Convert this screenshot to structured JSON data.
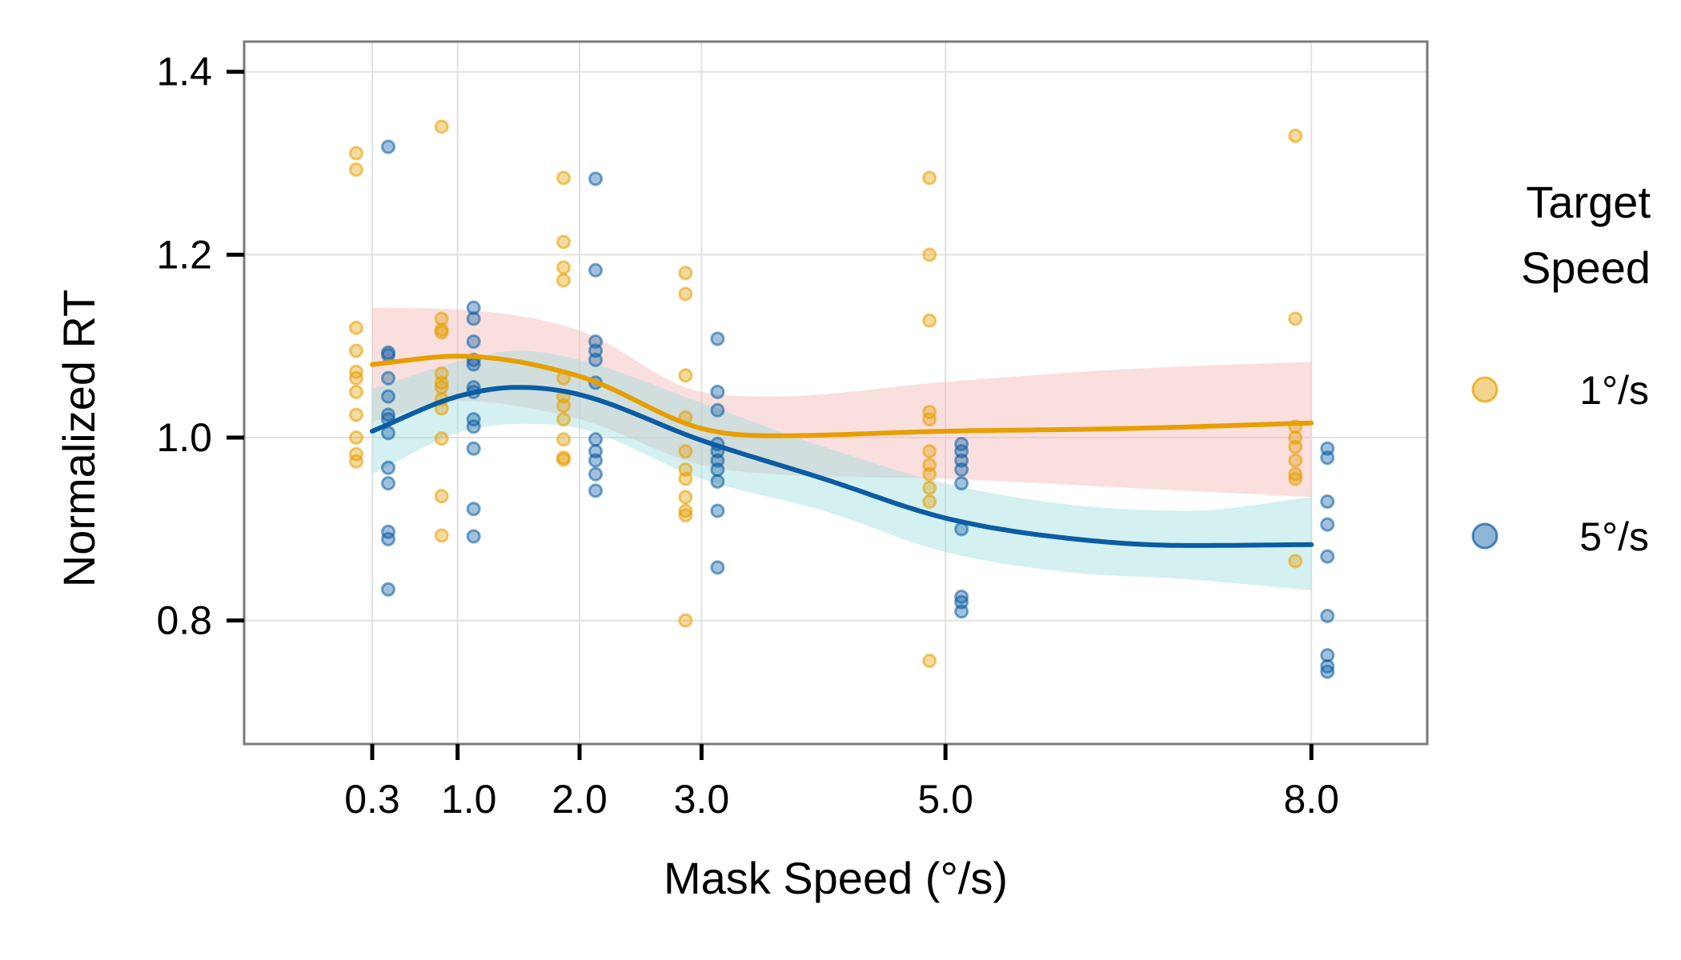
{
  "colors": {
    "slow": "#E69F00",
    "fast": "#0A5CA3",
    "slow_ribbon": "#F5B7B9",
    "fast_ribbon": "#9FDEDD",
    "grid": "#E2E2E2",
    "frame": "#7A7A7A"
  },
  "chart_data": {
    "type": "scatter",
    "xlabel": "Mask Speed (°/s)",
    "ylabel": "Normalized RT",
    "xlim": [
      -0.75,
      8.95
    ],
    "ylim": [
      0.665,
      1.433
    ],
    "x_ticks": [
      0.3,
      1.0,
      2.0,
      3.0,
      5.0,
      8.0
    ],
    "x_tick_labels": [
      "0.3",
      "1.0",
      "2.0",
      "3.0",
      "5.0",
      "8.0"
    ],
    "y_ticks": [
      0.8,
      1.0,
      1.2,
      1.4
    ],
    "y_tick_labels": [
      "0.8",
      "1.0",
      "1.2",
      "1.4"
    ],
    "grid": true,
    "legend": {
      "title_lines": [
        "Target",
        "Speed"
      ],
      "position": "right"
    },
    "series": [
      {
        "name": "1°/s",
        "color_key": "slow",
        "points": [
          {
            "x": 0.3,
            "ys": [
              1.311,
              1.293,
              1.12,
              1.095,
              1.072,
              1.065,
              1.05,
              1.025,
              1.0,
              0.982,
              0.974
            ]
          },
          {
            "x": 1.0,
            "ys": [
              1.34,
              1.13,
              1.118,
              1.115,
              1.07,
              1.06,
              1.055,
              1.042,
              1.032,
              0.999,
              0.936,
              0.893
            ]
          },
          {
            "x": 2.0,
            "ys": [
              1.284,
              1.214,
              1.186,
              1.172,
              1.065,
              1.045,
              1.035,
              1.02,
              0.998,
              0.978,
              0.976
            ]
          },
          {
            "x": 3.0,
            "ys": [
              1.18,
              1.157,
              1.068,
              1.022,
              0.985,
              0.965,
              0.955,
              0.935,
              0.92,
              0.915,
              0.8
            ]
          },
          {
            "x": 5.0,
            "ys": [
              1.284,
              1.2,
              1.128,
              1.028,
              1.02,
              0.985,
              0.97,
              0.96,
              0.945,
              0.93,
              0.756
            ]
          },
          {
            "x": 8.0,
            "ys": [
              1.33,
              1.13,
              1.012,
              1.0,
              0.99,
              0.975,
              0.96,
              0.955,
              0.865
            ]
          }
        ],
        "smooth": [
          {
            "x": 0.3,
            "y": 1.08,
            "lo": 1.017,
            "hi": 1.142
          },
          {
            "x": 1.0,
            "y": 1.089,
            "lo": 1.04,
            "hi": 1.14
          },
          {
            "x": 2.0,
            "y": 1.067,
            "lo": 1.02,
            "hi": 1.117
          },
          {
            "x": 3.0,
            "y": 1.01,
            "lo": 0.97,
            "hi": 1.05
          },
          {
            "x": 3.6,
            "y": 1.002,
            "lo": 0.96,
            "hi": 1.045
          },
          {
            "x": 5.0,
            "y": 1.007,
            "lo": 0.955,
            "hi": 1.061
          },
          {
            "x": 6.5,
            "y": 1.01,
            "lo": 0.945,
            "hi": 1.075
          },
          {
            "x": 8.0,
            "y": 1.016,
            "lo": 0.935,
            "hi": 1.083
          }
        ]
      },
      {
        "name": "5°/s",
        "color_key": "fast",
        "points": [
          {
            "x": 0.3,
            "ys": [
              1.318,
              1.093,
              1.09,
              1.065,
              1.045,
              1.025,
              1.02,
              1.005,
              0.967,
              0.95,
              0.897,
              0.889,
              0.834
            ]
          },
          {
            "x": 1.0,
            "ys": [
              1.142,
              1.13,
              1.105,
              1.085,
              1.08,
              1.055,
              1.05,
              1.02,
              1.012,
              0.988,
              0.922,
              0.892
            ]
          },
          {
            "x": 2.0,
            "ys": [
              1.283,
              1.183,
              1.105,
              1.095,
              1.085,
              1.06,
              0.998,
              0.985,
              0.975,
              0.96,
              0.942
            ]
          },
          {
            "x": 3.0,
            "ys": [
              1.108,
              1.05,
              1.03,
              0.993,
              0.985,
              0.975,
              0.965,
              0.952,
              0.92,
              0.858
            ]
          },
          {
            "x": 5.0,
            "ys": [
              0.993,
              0.985,
              0.975,
              0.965,
              0.95,
              0.9,
              0.826,
              0.82,
              0.81
            ]
          },
          {
            "x": 8.0,
            "ys": [
              0.988,
              0.978,
              0.93,
              0.905,
              0.87,
              0.805,
              0.762,
              0.75,
              0.744
            ]
          }
        ],
        "smooth": [
          {
            "x": 0.3,
            "y": 1.007,
            "lo": 0.96,
            "hi": 1.053
          },
          {
            "x": 1.0,
            "y": 1.045,
            "lo": 1.005,
            "hi": 1.083
          },
          {
            "x": 1.5,
            "y": 1.055,
            "lo": 1.015,
            "hi": 1.095
          },
          {
            "x": 2.0,
            "y": 1.047,
            "lo": 1.01,
            "hi": 1.085
          },
          {
            "x": 3.0,
            "y": 0.997,
            "lo": 0.955,
            "hi": 1.038
          },
          {
            "x": 4.0,
            "y": 0.955,
            "lo": 0.92,
            "hi": 0.99
          },
          {
            "x": 5.0,
            "y": 0.912,
            "lo": 0.875,
            "hi": 0.95
          },
          {
            "x": 6.0,
            "y": 0.89,
            "lo": 0.853,
            "hi": 0.927
          },
          {
            "x": 7.0,
            "y": 0.882,
            "lo": 0.845,
            "hi": 0.92
          },
          {
            "x": 8.0,
            "y": 0.883,
            "lo": 0.833,
            "hi": 0.935
          }
        ]
      }
    ]
  }
}
